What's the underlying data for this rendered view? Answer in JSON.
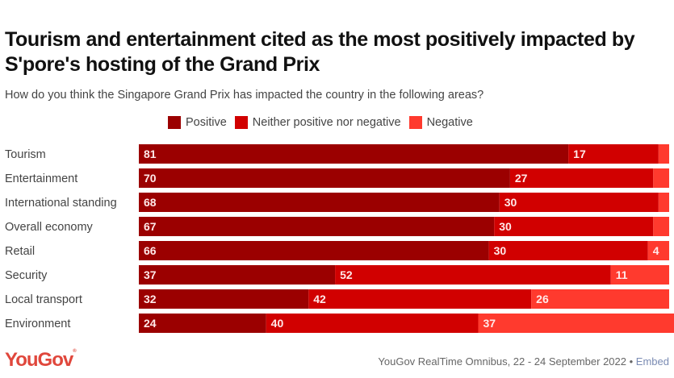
{
  "header": {
    "title": "Tourism and entertainment cited as the most positively impacted by S'pore's hosting of the Grand Prix",
    "subtitle": "How do you think the Singapore Grand Prix has impacted the country in the following areas?"
  },
  "legend": [
    {
      "label": "Positive",
      "color": "#9b0000"
    },
    {
      "label": "Neither positive nor negative",
      "color": "#d10000"
    },
    {
      "label": "Negative",
      "color": "#ff3a2e"
    }
  ],
  "chart_data": {
    "type": "bar",
    "orientation": "horizontal",
    "stacked": true,
    "title": "Tourism and entertainment cited as the most positively impacted by S'pore's hosting of the Grand Prix",
    "subtitle": "How do you think the Singapore Grand Prix has impacted the country in the following areas?",
    "categories": [
      "Tourism",
      "Entertainment",
      "International standing",
      "Overall economy",
      "Retail",
      "Security",
      "Local transport",
      "Environment"
    ],
    "series": [
      {
        "name": "Positive",
        "color": "#9b0000",
        "values": [
          81,
          70,
          68,
          67,
          66,
          37,
          32,
          24
        ]
      },
      {
        "name": "Neither positive nor negative",
        "color": "#d10000",
        "values": [
          17,
          27,
          30,
          30,
          30,
          52,
          42,
          40
        ]
      },
      {
        "name": "Negative",
        "color": "#ff3a2e",
        "values": [
          2,
          3,
          2,
          3,
          4,
          11,
          26,
          37
        ]
      }
    ],
    "shown_labels": [
      [
        "81",
        "17",
        ""
      ],
      [
        "70",
        "27",
        ""
      ],
      [
        "68",
        "30",
        ""
      ],
      [
        "67",
        "30",
        ""
      ],
      [
        "66",
        "30",
        "4"
      ],
      [
        "37",
        "52",
        "11"
      ],
      [
        "32",
        "42",
        "26"
      ],
      [
        "24",
        "40",
        "37"
      ]
    ],
    "xlim": [
      0,
      100
    ],
    "xlabel": "",
    "ylabel": "",
    "grid": false,
    "legend_position": "top"
  },
  "footer": {
    "logo": "YouGov",
    "source": "YouGov RealTime Omnibus, 22 - 24 September 2022",
    "separator": " • ",
    "embed_label": "Embed"
  }
}
